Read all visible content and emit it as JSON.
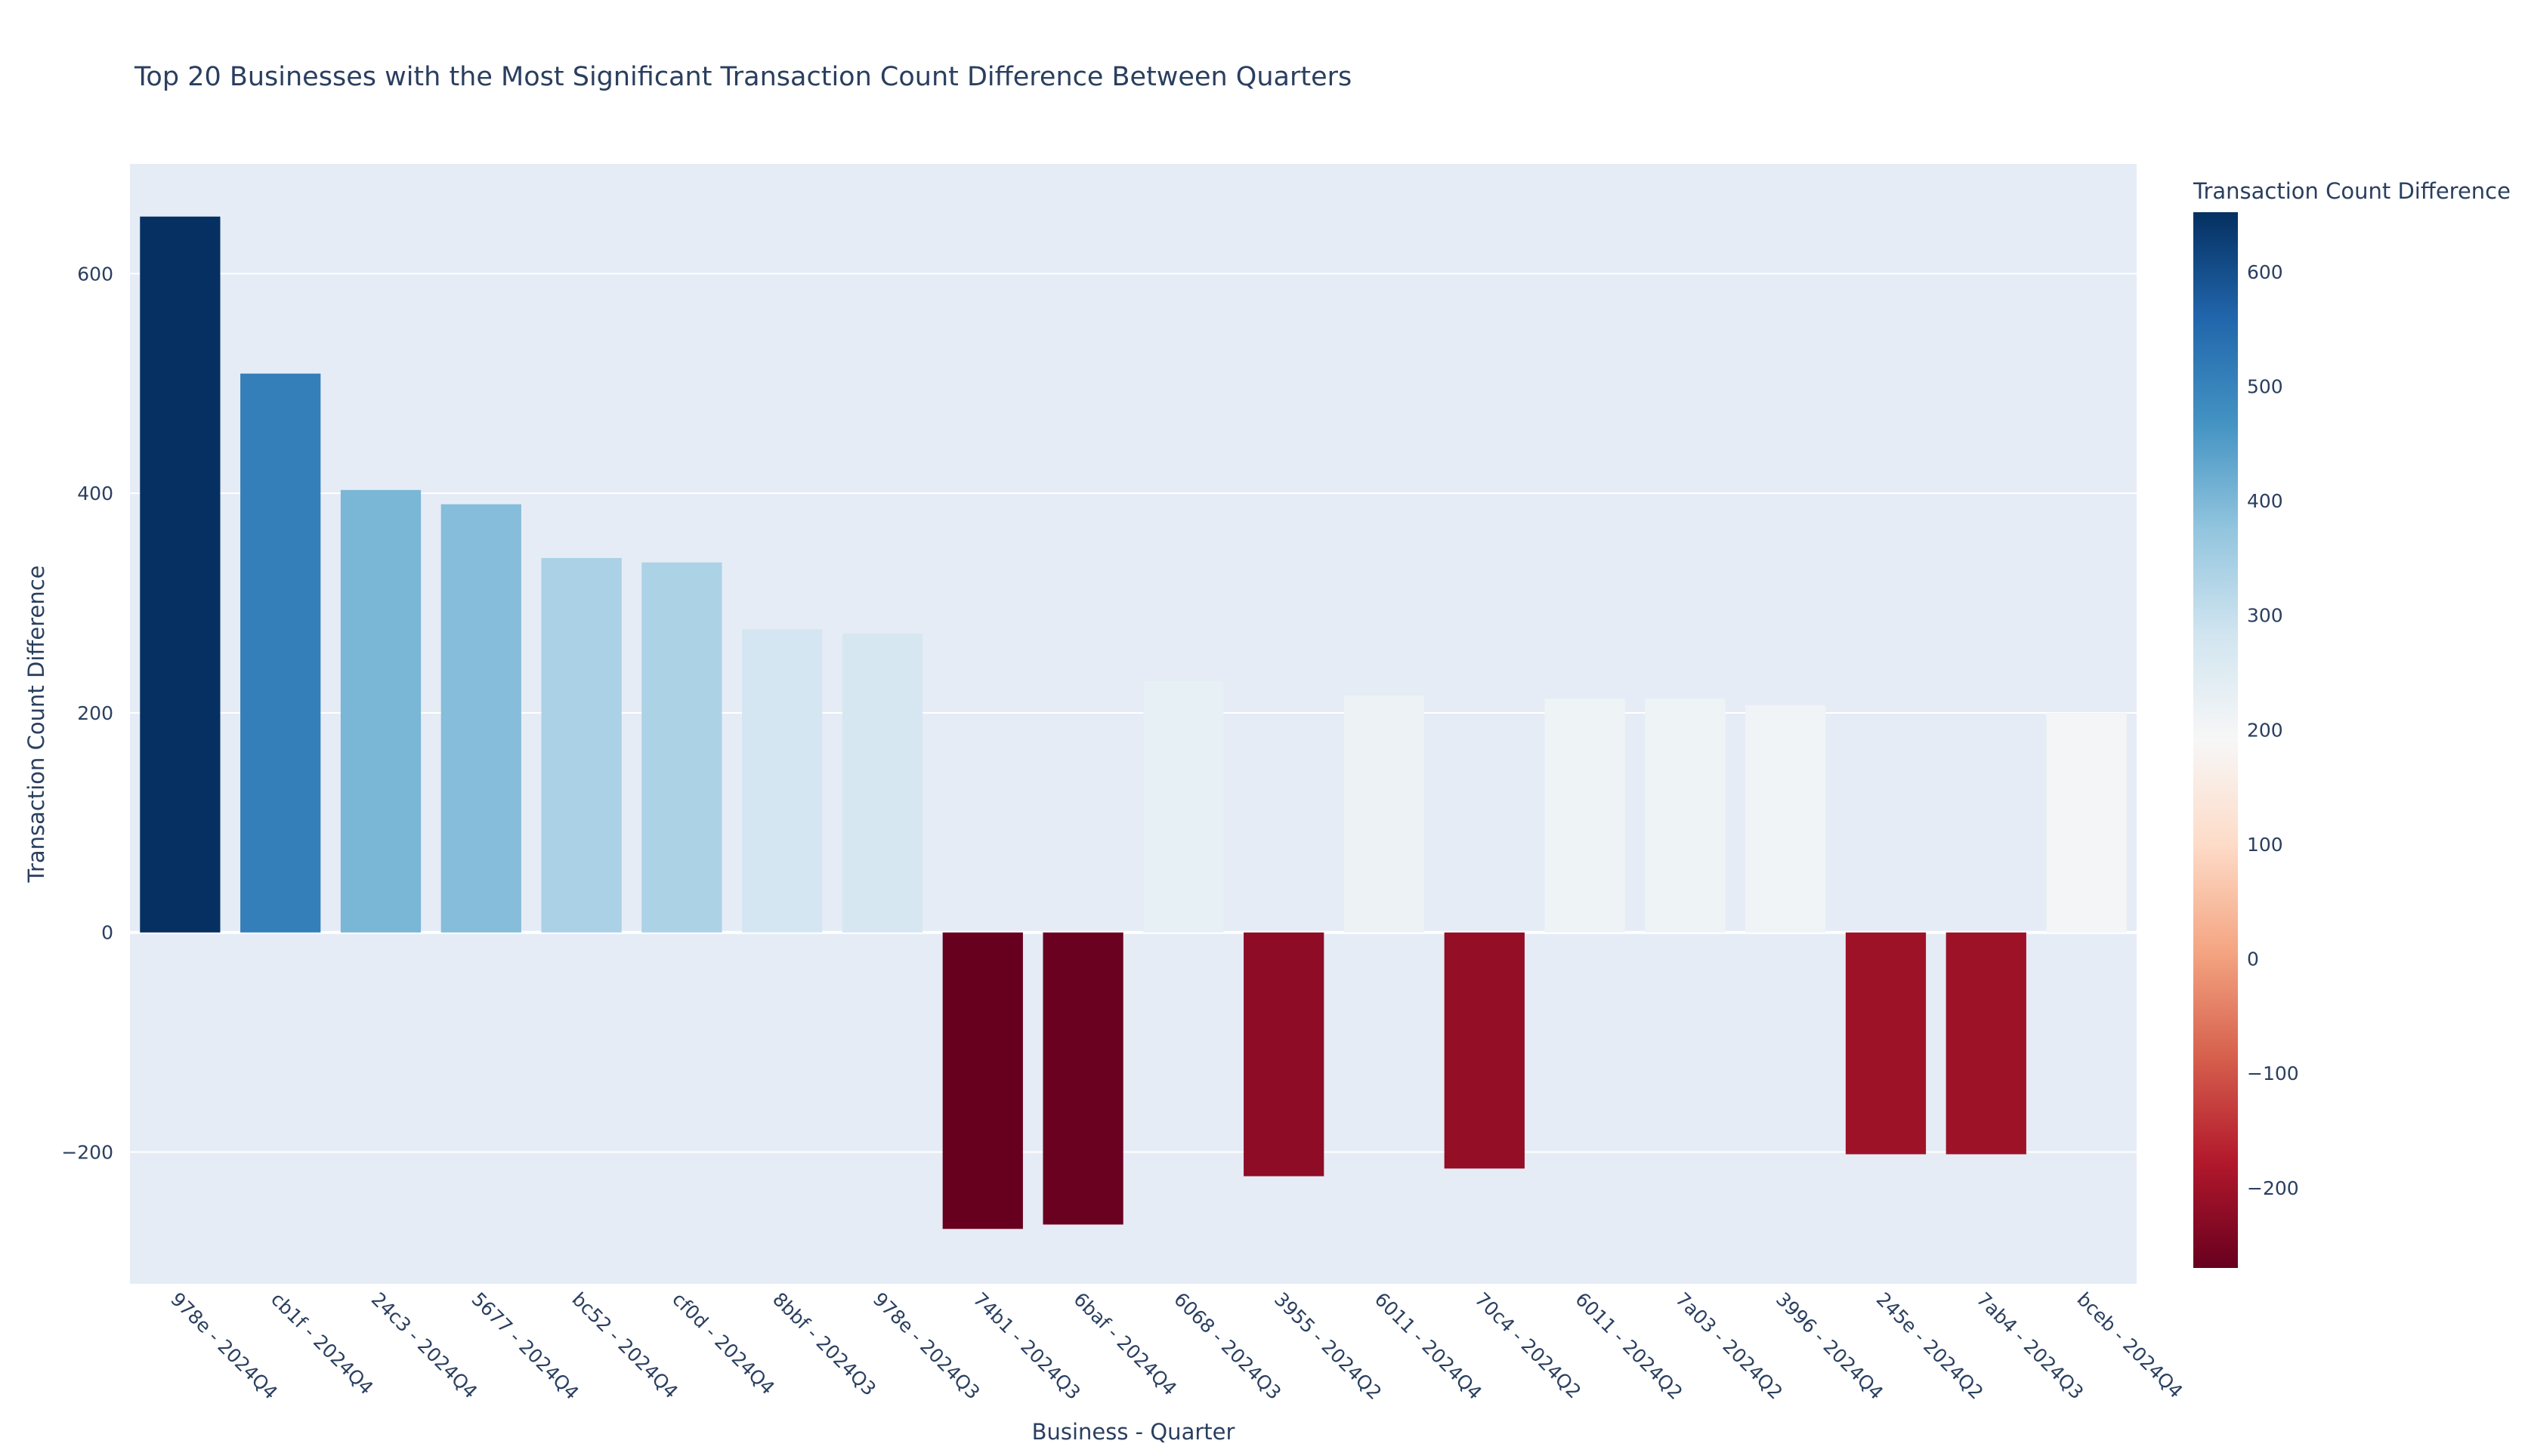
{
  "chart_data": {
    "type": "bar",
    "title": "Top 20 Businesses with the Most Significant Transaction Count Difference Between Quarters",
    "xlabel": "Business - Quarter",
    "ylabel": "Transaction Count Difference",
    "ylim": [
      -320,
      700
    ],
    "yticks": [
      600,
      400,
      200,
      0,
      -200
    ],
    "ytick_labels": [
      "600",
      "400",
      "200",
      "0",
      "−200"
    ],
    "categories": [
      "978e - 2024Q4",
      "cb1f - 2024Q4",
      "24c3 - 2024Q4",
      "5677 - 2024Q4",
      "bc52 - 2024Q4",
      "cf0d - 2024Q4",
      "8bbf - 2024Q3",
      "978e - 2024Q3",
      "74b1 - 2024Q3",
      "6baf - 2024Q4",
      "6068 - 2024Q3",
      "3955 - 2024Q2",
      "6011 - 2024Q4",
      "70c4 - 2024Q2",
      "6011 - 2024Q2",
      "7a03 - 2024Q2",
      "3996 - 2024Q4",
      "245e - 2024Q2",
      "7ab4 - 2024Q3",
      "bceb - 2024Q4"
    ],
    "values": [
      652,
      509,
      403,
      390,
      341,
      337,
      276,
      272,
      -270,
      -266,
      229,
      -222,
      216,
      -215,
      213,
      213,
      207,
      -202,
      -202,
      200
    ],
    "grid": true,
    "colorbar": {
      "title": "Transaction Count Difference",
      "min": -270,
      "max": 652,
      "ticks": [
        600,
        500,
        400,
        300,
        200,
        100,
        0,
        -100,
        -200
      ],
      "tick_labels": [
        "600",
        "500",
        "400",
        "300",
        "200",
        "100",
        "0",
        "−100",
        "−200"
      ],
      "colorscale": "RdBu"
    },
    "colors": {
      "plot_bg": "#e5ecf6",
      "grid": "#ffffff",
      "text": "#2a3f5f"
    }
  }
}
